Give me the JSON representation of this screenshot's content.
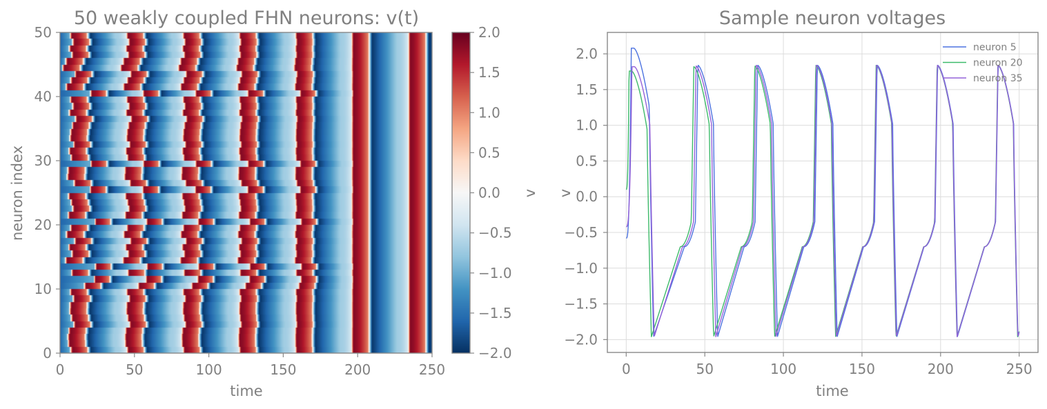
{
  "chart_data": [
    {
      "type": "heatmap",
      "title": "50 weakly coupled FHN neurons: v(t)",
      "xlabel": "time",
      "ylabel": "neuron index",
      "xlim": [
        0,
        250
      ],
      "ylim": [
        0,
        50
      ],
      "xticks": [
        "0",
        "50",
        "100",
        "150",
        "200",
        "250"
      ],
      "yticks": [
        "0",
        "10",
        "20",
        "30",
        "40",
        "50"
      ],
      "colormap": "RdBu_r",
      "colorbar": {
        "label": "v",
        "range": [
          -2.0,
          2.0
        ],
        "ticks": [
          "−2.0",
          "−1.5",
          "−1.0",
          "−0.5",
          "0.0",
          "0.5",
          "1.0",
          "1.5",
          "2.0"
        ]
      },
      "n_neurons": 50,
      "spike_period": 38.2,
      "rows_spike_onset": [
        6.8,
        5.0,
        4.8,
        5.4,
        9.0,
        7.2,
        6.0,
        6.2,
        8.6,
        6.4,
        17.0,
        24.8,
        7.4,
        25.8,
        3.2,
        7.6,
        5.4,
        9.6,
        3.8,
        6.6,
        25.4,
        5.0,
        8.2,
        7.0,
        5.2,
        21.4,
        9.2,
        4.4,
        4.8,
        22.0,
        7.0,
        5.6,
        8.8,
        6.2,
        6.6,
        7.8,
        10.2,
        5.8,
        8.2,
        6.4,
        21.8,
        3.6,
        6.8,
        9.8,
        1.2,
        3.4,
        7.6,
        5.8,
        8.2,
        6.4
      ]
    },
    {
      "type": "line",
      "title": "Sample neuron voltages",
      "xlabel": "time",
      "ylabel": "v",
      "xlim": [
        -12,
        262
      ],
      "ylim": [
        -2.18,
        2.3
      ],
      "xticks": [
        "0",
        "50",
        "100",
        "150",
        "200",
        "250"
      ],
      "yticks": [
        "−2.0",
        "−1.5",
        "−1.0",
        "−0.5",
        "0.0",
        "0.5",
        "1.0",
        "1.5",
        "2.0"
      ],
      "grid": true,
      "legend": "top-right",
      "series": [
        {
          "name": "neuron 5",
          "color": "#4c72e0",
          "initial_v": -0.58,
          "spike_times": [
            3.2,
            44.0,
            82.0,
            120.0,
            158.0,
            196.5,
            235.0
          ],
          "peaks": [
            2.08,
            1.84,
            1.84,
            1.84,
            1.84,
            1.84,
            1.84
          ]
        },
        {
          "name": "neuron 20",
          "color": "#3dba6a",
          "initial_v": 0.1,
          "spike_times": [
            1.8,
            41.4,
            80.2,
            119.0,
            157.4,
            196.2,
            234.8
          ],
          "peaks": [
            1.76,
            1.82,
            1.83,
            1.84,
            1.84,
            1.84,
            1.84
          ]
        },
        {
          "name": "neuron 35",
          "color": "#9462d8",
          "initial_v": -0.42,
          "spike_times": [
            3.6,
            42.8,
            81.0,
            119.4,
            157.6,
            196.3,
            234.9
          ],
          "peaks": [
            1.82,
            1.83,
            1.84,
            1.84,
            1.84,
            1.84,
            1.84
          ]
        }
      ]
    }
  ]
}
